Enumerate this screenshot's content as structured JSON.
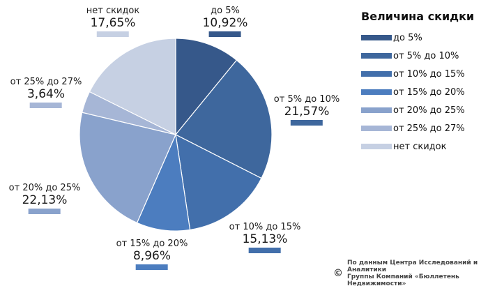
{
  "chart_data": {
    "type": "pie",
    "title": "",
    "legend_title": "Величина скидки",
    "legend_placement": "right",
    "slices": [
      {
        "label": "до 5%",
        "value": 10.92,
        "value_label": "10,92%",
        "color": "#36588a"
      },
      {
        "label": "от 5% до 10%",
        "value": 21.57,
        "value_label": "21,57%",
        "color": "#3e679d"
      },
      {
        "label": "от 10% до 15%",
        "value": 15.13,
        "value_label": "15,13%",
        "color": "#426fab"
      },
      {
        "label": "от 15% до 20%",
        "value": 8.96,
        "value_label": "8,96%",
        "color": "#4c7dbf"
      },
      {
        "label": "от 20% до 25%",
        "value": 22.13,
        "value_label": "22,13%",
        "color": "#89a2cc"
      },
      {
        "label": "от 25% до 27%",
        "value": 3.64,
        "value_label": "3,64%",
        "color": "#a6b6d6"
      },
      {
        "label": "нет скидок",
        "value": 17.65,
        "value_label": "17,65%",
        "color": "#c6d0e3"
      }
    ]
  },
  "source": {
    "symbol": "©",
    "line1": "По данным Центра Исследований и Аналитики",
    "line2": "Группы Компаний «Бюллетень Недвижимости»"
  }
}
